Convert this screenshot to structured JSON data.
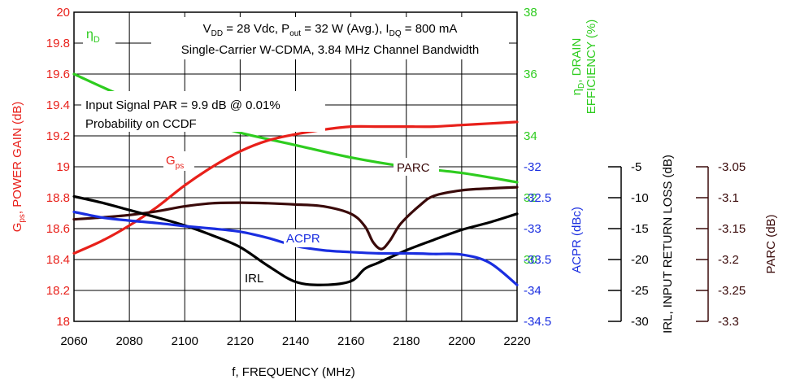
{
  "chart_data": {
    "type": "line",
    "annotation_conditions": "VDD = 28 Vdc, Pout = 32 W (Avg.), IDQ = 800 mA",
    "annotation_signal": "Single-Carrier W-CDMA, 3.84 MHz Channel Bandwidth",
    "annotation_par_line1": "Input Signal PAR = 9.9 dB @ 0.01%",
    "annotation_par_line2": "Probability on CCDF",
    "xlabel": "f, FREQUENCY (MHz)",
    "xlim": [
      2060,
      2220
    ],
    "xticks": [
      "2060",
      "2080",
      "2100",
      "2120",
      "2140",
      "2160",
      "2180",
      "2200",
      "2220"
    ],
    "axes": {
      "gain": {
        "label_main": "G",
        "label_sub": "ps",
        "label_rest": ", POWER GAIN (dB)",
        "ylim": [
          18,
          20
        ],
        "ticks": [
          "18",
          "18.2",
          "18.4",
          "18.6",
          "18.8",
          "19",
          "19.2",
          "19.4",
          "19.6",
          "19.8",
          "20"
        ],
        "color": "#e8201a"
      },
      "efficiency": {
        "label_line1_main": "η",
        "label_line1_sub": "D",
        "label_line1_rest": ", DRAIN",
        "label_line2": "EFFICIENCY (%)",
        "ylim": [
          28,
          38
        ],
        "ticks": [
          "30",
          "32",
          "34",
          "36",
          "38"
        ],
        "color": "#2ecc1f"
      },
      "acpr": {
        "label": "ACPR (dBc)",
        "ylim": [
          -34.5,
          -32
        ],
        "ticks": [
          "-32",
          "-32.5",
          "-33",
          "-33.5",
          "-34",
          "-34.5"
        ],
        "color": "#1a2ee0"
      },
      "irl": {
        "label": "IRL, INPUT RETURN LOSS (dB)",
        "ylim": [
          -30,
          -5
        ],
        "ticks": [
          "-5",
          "-10",
          "-15",
          "-20",
          "-25",
          "-30"
        ],
        "color": "#000000"
      },
      "parc": {
        "label": "PARC (dB)",
        "ylim": [
          -3.3,
          -3.05
        ],
        "ticks": [
          "-3.05",
          "-3.1",
          "-3.15",
          "-3.2",
          "-3.25",
          "-3.3"
        ],
        "color": "#3a0a0a"
      }
    },
    "series": [
      {
        "name": "ηD",
        "label_main": "η",
        "label_sub": "D",
        "axis": "efficiency",
        "color": "#2ecc1f",
        "x": [
          2060,
          2080,
          2100,
          2120,
          2140,
          2160,
          2180,
          2200,
          2220
        ],
        "values": [
          36.0,
          35.2,
          34.6,
          34.1,
          33.7,
          33.3,
          33.0,
          32.8,
          32.5
        ]
      },
      {
        "name": "Gps",
        "label_main": "G",
        "label_sub": "ps",
        "axis": "gain",
        "color": "#e8201a",
        "x": [
          2060,
          2070,
          2080,
          2090,
          2100,
          2110,
          2120,
          2130,
          2140,
          2150,
          2160,
          2170,
          2180,
          2190,
          2200,
          2210,
          2220
        ],
        "values": [
          18.44,
          18.52,
          18.62,
          18.74,
          18.88,
          19.0,
          19.1,
          19.17,
          19.21,
          19.24,
          19.26,
          19.26,
          19.26,
          19.26,
          19.27,
          19.28,
          19.29
        ]
      },
      {
        "name": "PARC",
        "axis": "parc",
        "color": "#3a0a0a",
        "x": [
          2060,
          2070,
          2080,
          2090,
          2100,
          2110,
          2120,
          2130,
          2140,
          2150,
          2160,
          2165,
          2168,
          2171,
          2174,
          2178,
          2185,
          2190,
          2200,
          2210,
          2220
        ],
        "values": [
          -3.135,
          -3.132,
          -3.128,
          -3.122,
          -3.114,
          -3.109,
          -3.108,
          -3.109,
          -3.111,
          -3.114,
          -3.126,
          -3.146,
          -3.172,
          -3.183,
          -3.17,
          -3.142,
          -3.112,
          -3.097,
          -3.088,
          -3.085,
          -3.083
        ]
      },
      {
        "name": "IRL",
        "axis": "irl",
        "color": "#000000",
        "x": [
          2060,
          2070,
          2080,
          2090,
          2100,
          2110,
          2120,
          2130,
          2140,
          2150,
          2160,
          2165,
          2170,
          2180,
          2190,
          2200,
          2210,
          2220
        ],
        "values": [
          -9.8,
          -10.8,
          -12.0,
          -13.2,
          -14.5,
          -16.1,
          -18.0,
          -21.0,
          -23.6,
          -24.1,
          -23.5,
          -21.5,
          -20.5,
          -18.5,
          -16.8,
          -15.2,
          -14.0,
          -12.6
        ]
      },
      {
        "name": "ACPR",
        "axis": "acpr",
        "color": "#1a2ee0",
        "x": [
          2060,
          2070,
          2080,
          2090,
          2100,
          2110,
          2120,
          2130,
          2140,
          2150,
          2160,
          2170,
          2180,
          2190,
          2200,
          2210,
          2220
        ],
        "values": [
          -32.73,
          -32.82,
          -32.87,
          -32.91,
          -32.96,
          -33.0,
          -33.05,
          -33.15,
          -33.28,
          -33.35,
          -33.38,
          -33.4,
          -33.4,
          -33.41,
          -33.42,
          -33.55,
          -33.91
        ]
      }
    ]
  }
}
